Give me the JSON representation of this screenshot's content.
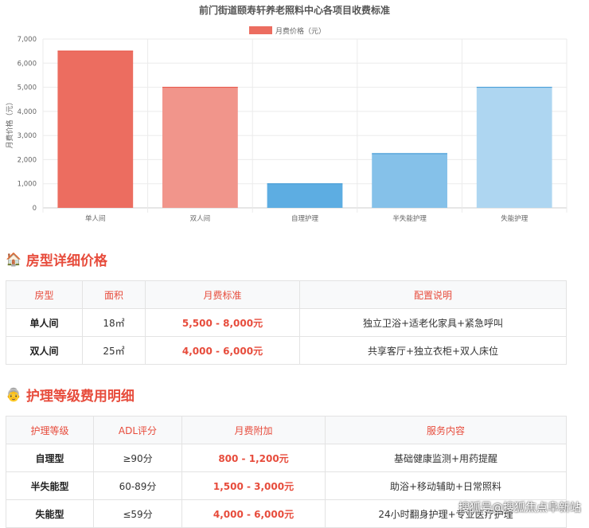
{
  "chart_data": {
    "type": "bar",
    "title": "前门街道颐寿轩养老照料中心各项目收费标准",
    "legend": "月费价格（元）",
    "legend_position": "top",
    "ylabel": "月费价格（元）",
    "ylim": [
      0,
      7000
    ],
    "yticks": [
      0,
      1000,
      2000,
      3000,
      4000,
      5000,
      6000,
      7000
    ],
    "ytick_labels": [
      "0",
      "1,000",
      "2,000",
      "3,000",
      "4,000",
      "5,000",
      "6,000",
      "7,000"
    ],
    "grid": true,
    "categories": [
      "单人间",
      "双人间",
      "自理护理",
      "半失能护理",
      "失能护理"
    ],
    "values": [
      6500,
      5000,
      1000,
      2250,
      5000
    ],
    "colors": [
      "#ec6d60",
      "#f1958b",
      "#5dade2",
      "#85c1e9",
      "#aed6f1"
    ]
  },
  "section1": {
    "icon": "house-icon",
    "title": "房型详细价格",
    "headers": [
      "房型",
      "面积",
      "月费标准",
      "配置说明"
    ],
    "rows": [
      [
        "单人间",
        "18㎡",
        "5,500 - 8,000元",
        "独立卫浴+适老化家具+紧急呼叫"
      ],
      [
        "双人间",
        "25㎡",
        "4,000 - 6,000元",
        "共享客厅+独立衣柜+双人床位"
      ]
    ]
  },
  "section2": {
    "icon": "elderly-person-icon",
    "title": "护理等级费用明细",
    "headers": [
      "护理等级",
      "ADL评分",
      "月费附加",
      "服务内容"
    ],
    "rows": [
      [
        "自理型",
        "≥90分",
        "800 - 1,200元",
        "基础健康监测+用药提醒"
      ],
      [
        "半失能型",
        "60-89分",
        "1,500 - 3,000元",
        "助浴+移动辅助+日常照料"
      ],
      [
        "失能型",
        "≤59分",
        "4,000 - 6,000元",
        "24小时翻身护理+专业医疗护理"
      ]
    ]
  },
  "watermark": "搜狐号@搜狐焦点阜新站"
}
